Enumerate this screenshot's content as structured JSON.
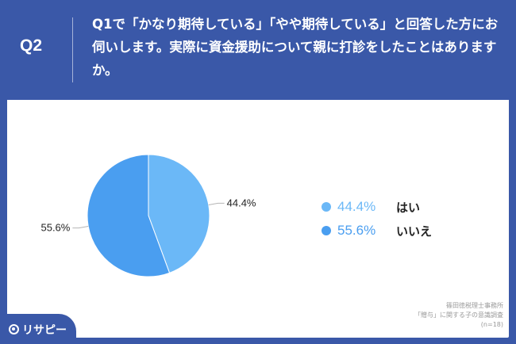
{
  "header": {
    "q_label": "Q2",
    "question": "Q1で「かなり期待している」「やや期待している」と回答した方にお伺いします。実際に資金援助について親に打診をしたことはありますか。"
  },
  "chart_data": {
    "type": "pie",
    "slices": [
      {
        "label": "はい",
        "value": 44.4,
        "value_label": "44.4%",
        "color": "#6bb8f7"
      },
      {
        "label": "いいえ",
        "value": 55.6,
        "value_label": "55.6%",
        "color": "#4a9ef0"
      }
    ],
    "legend_position": "right",
    "start": "top",
    "direction": "clockwise"
  },
  "legend": {
    "items": [
      {
        "pct": "44.4%",
        "name": "はい",
        "color": "#6bb8f7"
      },
      {
        "pct": "55.6%",
        "name": "いいえ",
        "color": "#4a9ef0"
      }
    ]
  },
  "source": {
    "line1": "篠田徳税理士事務所",
    "line2": "「贈与」に関する子の意識調査",
    "line3": "(n=18)"
  },
  "brand": {
    "logo_text": "リサピー",
    "logo_icon": "risapi-logo-icon"
  }
}
